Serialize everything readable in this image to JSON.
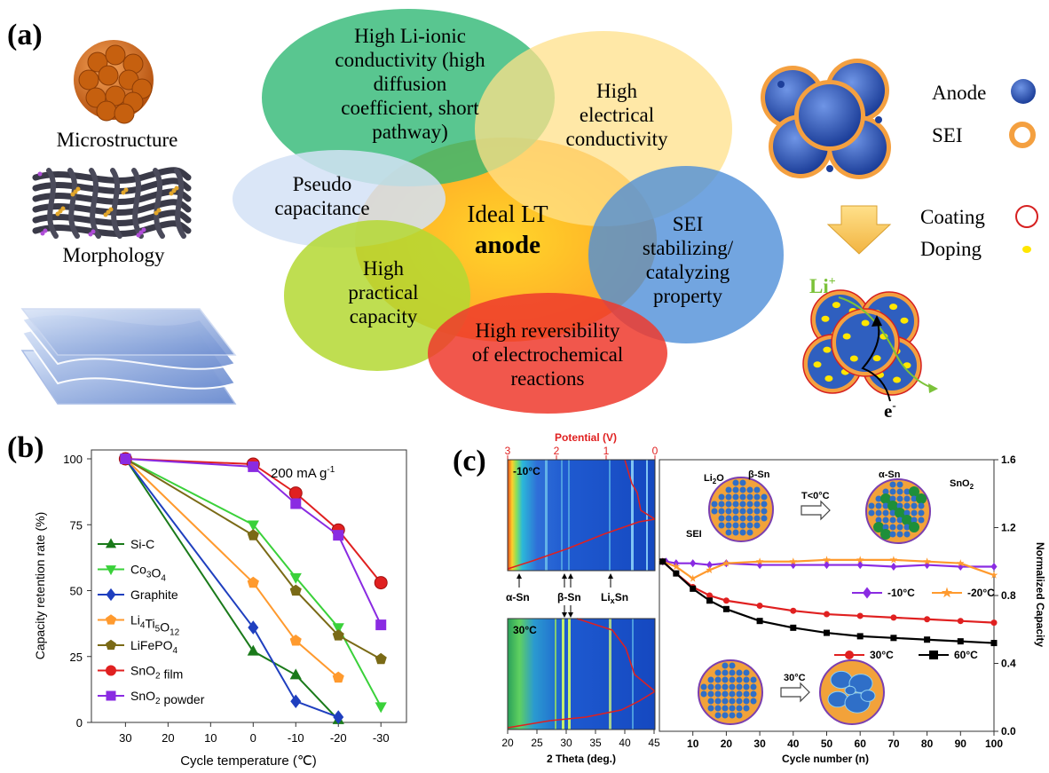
{
  "panel_a": {
    "label": "(a)",
    "left_labels": [
      "Microstructure",
      "Morphology"
    ],
    "ellipses": [
      {
        "lines": [
          "High Li-ionic",
          "conductivity (high",
          "diffusion",
          "coefficient, short",
          "pathway)"
        ]
      },
      {
        "lines": [
          "High",
          "electrical",
          "conductivity"
        ]
      },
      {
        "lines": [
          "Pseudo",
          "capacitance"
        ]
      },
      {
        "lines": [
          "SEI",
          "stabilizing/",
          "catalyzing",
          "property"
        ]
      },
      {
        "lines": [
          "High",
          "practical",
          "capacity"
        ]
      },
      {
        "lines": [
          "High reversibility",
          "of electrochemical",
          "reactions"
        ]
      }
    ],
    "center_line1": "Ideal LT",
    "center_line2": "anode",
    "legend": {
      "anode": "Anode",
      "sei": "SEI",
      "coating": "Coating",
      "doping": "Doping"
    },
    "li_label": "Li",
    "li_sup": "+",
    "e_label": "e",
    "e_sup": "-",
    "colors": {
      "anode": "#2f5fbf",
      "sei": "#f4a040",
      "doping": "#ffe600",
      "coating": "#d62020"
    }
  },
  "panel_b": {
    "label": "(b)",
    "annotation": "200 mA g",
    "annotation_sup": "-1",
    "chart_data": {
      "type": "line",
      "x": [
        30,
        0,
        -10,
        -20,
        -30
      ],
      "xlabel": "Cycle temperature (℃)",
      "ylabel": "Capacity retention rate (%)",
      "xlim": [
        38,
        -36
      ],
      "ylim": [
        0,
        100
      ],
      "xticks": [
        30,
        20,
        10,
        0,
        -10,
        -20,
        -30
      ],
      "xtick_labels": [
        "30",
        "20",
        "10",
        "0",
        "-10",
        "-20",
        "-30"
      ],
      "yticks": [
        0,
        25,
        50,
        75,
        100
      ],
      "ytick_labels": [
        "0",
        "25",
        "50",
        "75",
        "100"
      ],
      "series": [
        {
          "name": "Si-C",
          "label_main": "Si-C",
          "label_parts": [],
          "color": "#1a7a1a",
          "marker": "triangle-up",
          "values": [
            100,
            27,
            18,
            1,
            null
          ]
        },
        {
          "name": "Co3O4",
          "label_main": "",
          "label_parts": [
            [
              "Co",
              ""
            ],
            [
              "3",
              "sub"
            ],
            [
              "O",
              ""
            ],
            [
              "4",
              "sub"
            ]
          ],
          "color": "#3ad13a",
          "marker": "triangle-down",
          "values": [
            100,
            75,
            55,
            36,
            6
          ]
        },
        {
          "name": "Graphite",
          "label_main": "Graphite",
          "label_parts": [],
          "color": "#1f3fbf",
          "marker": "diamond",
          "values": [
            100,
            36,
            8,
            2,
            null
          ]
        },
        {
          "name": "Li4Ti5O12",
          "label_main": "",
          "label_parts": [
            [
              "Li",
              ""
            ],
            [
              "4",
              "sub"
            ],
            [
              "Ti",
              ""
            ],
            [
              "5",
              "sub"
            ],
            [
              "O",
              ""
            ],
            [
              "12",
              "sub"
            ]
          ],
          "color": "#ff9a2e",
          "marker": "pentagon",
          "values": [
            100,
            53,
            31,
            17,
            null
          ]
        },
        {
          "name": "LiFePO4",
          "label_main": "",
          "label_parts": [
            [
              "LiFePO",
              ""
            ],
            [
              "4",
              "sub"
            ]
          ],
          "color": "#7a6a16",
          "marker": "pentagon",
          "values": [
            100,
            71,
            50,
            33,
            24
          ]
        },
        {
          "name": "SnO2 film",
          "label_main": "",
          "label_parts": [
            [
              "SnO",
              ""
            ],
            [
              "2",
              "sub"
            ],
            [
              " film",
              ""
            ]
          ],
          "color": "#e02020",
          "marker": "circle",
          "values": [
            100,
            98,
            87,
            73,
            53
          ]
        },
        {
          "name": "SnO2 powder",
          "label_main": "",
          "label_parts": [
            [
              "SnO",
              ""
            ],
            [
              "2",
              "sub"
            ],
            [
              " powder",
              ""
            ]
          ],
          "color": "#8a2be2",
          "marker": "square",
          "values": [
            100,
            97,
            83,
            71,
            37
          ]
        }
      ],
      "legend_position": "bottom-left"
    }
  },
  "panel_c": {
    "label": "(c)",
    "top_axis_title": "Potential (V)",
    "top_ticks": [
      "3",
      "2",
      "1",
      "0"
    ],
    "temp_top": "-10°C",
    "temp_bottom": "30°C",
    "phase_labels": [
      "α-Sn",
      "β-Sn",
      "Li"
    ],
    "phase_li_sub": "x",
    "phase_li_after": "Sn",
    "heatmap_xlabel": "2 Theta (deg.)",
    "heatmap_xticks": [
      "20",
      "25",
      "30",
      "35",
      "40",
      "45"
    ],
    "inset": {
      "li2o": "Li",
      "li2o_sub": "2",
      "li2o_after": "O",
      "beta_sn": "β-Sn",
      "alpha_sn": "α-Sn",
      "sei": "SEI",
      "cond1": "T<0°C",
      "cond2": "30°C",
      "material": "SnO",
      "material_sub": "2"
    },
    "chart_data": {
      "type": "scatter",
      "xlabel": "Cycle number (n)",
      "ylabel": "Normalized Capacity",
      "xlim": [
        0,
        100
      ],
      "ylim": [
        0.0,
        1.6
      ],
      "xticks": [
        10,
        20,
        30,
        40,
        50,
        60,
        70,
        80,
        90,
        100
      ],
      "xtick_labels": [
        "10",
        "20",
        "30",
        "40",
        "50",
        "60",
        "70",
        "80",
        "90",
        "100"
      ],
      "yticks": [
        0.0,
        0.4,
        0.8,
        1.2,
        1.6
      ],
      "ytick_labels": [
        "0.0",
        "0.4",
        "0.8",
        "1.2",
        "1.6"
      ],
      "axis_side": "right",
      "series": [
        {
          "name": "-10°C",
          "color": "#8a2be2",
          "marker": "diamond",
          "x": [
            1,
            2,
            5,
            10,
            15,
            20,
            30,
            40,
            50,
            60,
            70,
            80,
            90,
            100
          ],
          "y": [
            1.0,
            1.0,
            0.99,
            0.99,
            0.98,
            0.99,
            0.98,
            0.98,
            0.98,
            0.98,
            0.97,
            0.98,
            0.97,
            0.97
          ]
        },
        {
          "name": "-20°C",
          "color": "#ff9a2e",
          "marker": "star",
          "x": [
            1,
            5,
            10,
            15,
            20,
            30,
            40,
            50,
            60,
            70,
            80,
            90,
            100
          ],
          "y": [
            1.0,
            0.97,
            0.9,
            0.95,
            0.99,
            1.0,
            1.0,
            1.01,
            1.01,
            1.01,
            1.0,
            0.99,
            0.92
          ]
        },
        {
          "name": "30°C",
          "color": "#e02020",
          "marker": "circle",
          "x": [
            1,
            5,
            10,
            15,
            20,
            30,
            40,
            50,
            60,
            70,
            80,
            90,
            100
          ],
          "y": [
            1.0,
            0.93,
            0.85,
            0.8,
            0.77,
            0.74,
            0.71,
            0.69,
            0.68,
            0.67,
            0.66,
            0.65,
            0.64
          ]
        },
        {
          "name": "60°C",
          "color": "#000000",
          "marker": "square",
          "x": [
            1,
            5,
            10,
            15,
            20,
            30,
            40,
            50,
            60,
            70,
            80,
            90,
            100
          ],
          "y": [
            1.0,
            0.93,
            0.84,
            0.77,
            0.72,
            0.65,
            0.61,
            0.58,
            0.56,
            0.55,
            0.54,
            0.53,
            0.52
          ]
        }
      ],
      "legend_position": "right-middle"
    }
  }
}
